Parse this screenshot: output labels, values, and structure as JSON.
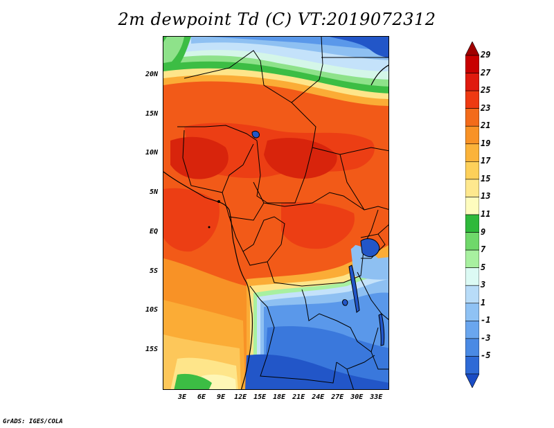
{
  "title": "2m dewpoint Td (C) VT:2019072312",
  "credit": "GrADS: IGES/COLA",
  "map": {
    "lon_range": [
      0,
      35
    ],
    "lat_range": [
      -20,
      25
    ],
    "lat_ticks": [
      {
        "value": 20,
        "label": "20N"
      },
      {
        "value": 15,
        "label": "15N"
      },
      {
        "value": 10,
        "label": "10N"
      },
      {
        "value": 5,
        "label": "5N"
      },
      {
        "value": 0,
        "label": "EQ"
      },
      {
        "value": -5,
        "label": "5S"
      },
      {
        "value": -10,
        "label": "10S"
      },
      {
        "value": -15,
        "label": "15S"
      }
    ],
    "lon_ticks": [
      {
        "value": 3,
        "label": "3E"
      },
      {
        "value": 6,
        "label": "6E"
      },
      {
        "value": 9,
        "label": "9E"
      },
      {
        "value": 12,
        "label": "12E"
      },
      {
        "value": 15,
        "label": "15E"
      },
      {
        "value": 18,
        "label": "18E"
      },
      {
        "value": 21,
        "label": "21E"
      },
      {
        "value": 24,
        "label": "24E"
      },
      {
        "value": 27,
        "label": "27E"
      },
      {
        "value": 30,
        "label": "30E"
      },
      {
        "value": 33,
        "label": "33E"
      }
    ]
  },
  "colorbar": {
    "levels": [
      "29",
      "27",
      "25",
      "23",
      "21",
      "19",
      "17",
      "15",
      "13",
      "11",
      "9",
      "7",
      "5",
      "3",
      "1",
      "-1",
      "-3",
      "-5"
    ],
    "colors_top_to_bottom": [
      "#a00000",
      "#c80000",
      "#e01a0e",
      "#ee3a12",
      "#f36b1a",
      "#f89226",
      "#fbb33a",
      "#fdd05a",
      "#fee88e",
      "#fefcbe",
      "#2fb93b",
      "#6fd86a",
      "#a8f0a0",
      "#dcfaf4",
      "#b8dcf8",
      "#8fc2f4",
      "#6aa6ee",
      "#4a8ae4",
      "#2e6ad6",
      "#1a4cc4"
    ]
  },
  "colors": {
    "deep_red": "#d8240c",
    "red": "#ec3e14",
    "orange_red": "#f25a18",
    "orange": "#f78a22",
    "light_orange": "#fbac36",
    "yellow_orange": "#fdc75a",
    "pale_yellow": "#fee58a",
    "cream": "#fef6b6",
    "green": "#3cbd44",
    "light_green": "#8ee28a",
    "mint": "#d4f6e8",
    "pale_blue": "#c4e2fa",
    "light_blue": "#8ec0f2",
    "blue": "#5a98ea",
    "mid_blue": "#3a78dc",
    "dark_blue": "#2256c8"
  }
}
